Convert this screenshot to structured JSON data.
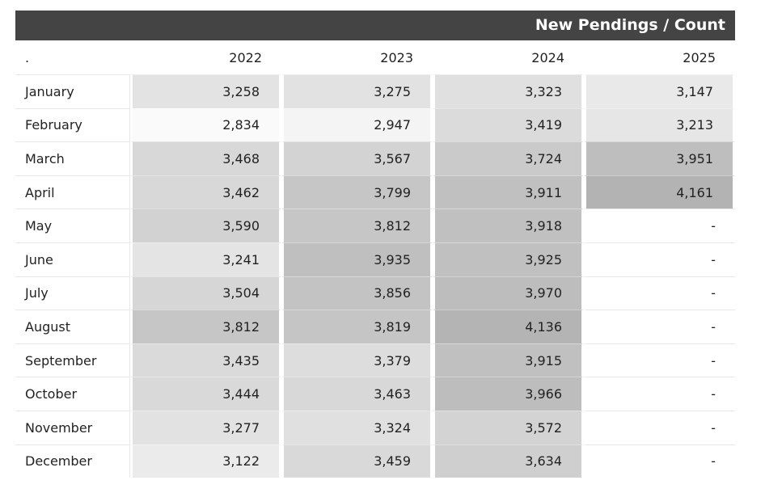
{
  "title": "New Pendings / Count",
  "corner_label": ".",
  "years": [
    "2022",
    "2023",
    "2024",
    "2025"
  ],
  "rows": [
    {
      "month": "January",
      "values": [
        "3,258",
        "3,275",
        "3,323",
        "3,147"
      ]
    },
    {
      "month": "February",
      "values": [
        "2,834",
        "2,947",
        "3,419",
        "3,213"
      ]
    },
    {
      "month": "March",
      "values": [
        "3,468",
        "3,567",
        "3,724",
        "3,951"
      ]
    },
    {
      "month": "April",
      "values": [
        "3,462",
        "3,799",
        "3,911",
        "4,161"
      ]
    },
    {
      "month": "May",
      "values": [
        "3,590",
        "3,812",
        "3,918",
        "-"
      ]
    },
    {
      "month": "June",
      "values": [
        "3,241",
        "3,935",
        "3,925",
        "-"
      ]
    },
    {
      "month": "July",
      "values": [
        "3,504",
        "3,856",
        "3,970",
        "-"
      ]
    },
    {
      "month": "August",
      "values": [
        "3,812",
        "3,819",
        "4,136",
        "-"
      ]
    },
    {
      "month": "September",
      "values": [
        "3,435",
        "3,379",
        "3,915",
        "-"
      ]
    },
    {
      "month": "October",
      "values": [
        "3,444",
        "3,463",
        "3,966",
        "-"
      ]
    },
    {
      "month": "November",
      "values": [
        "3,277",
        "3,324",
        "3,572",
        "-"
      ]
    },
    {
      "month": "December",
      "values": [
        "3,122",
        "3,459",
        "3,634",
        "-"
      ]
    }
  ],
  "colors": {
    "header_bg": "#444444",
    "heat_low": "#fafafa",
    "heat_high": "#b3b3b3"
  }
}
